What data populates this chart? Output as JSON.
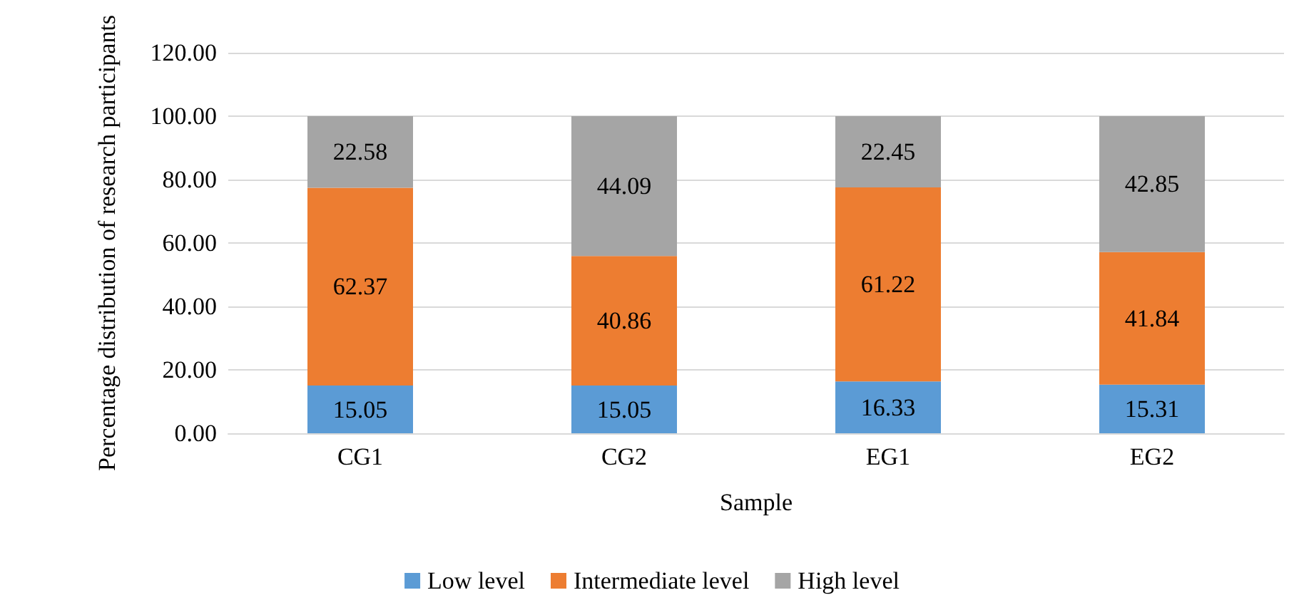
{
  "chart_data": {
    "type": "bar",
    "stacked": true,
    "data_labels": true,
    "xlabel": "Sample",
    "ylabel": "Percentage distribution of research participants",
    "categories": [
      "CG1",
      "CG2",
      "EG1",
      "EG2"
    ],
    "series": [
      {
        "name": "Low level",
        "color": "#5b9bd5",
        "values": [
          15.05,
          15.05,
          16.33,
          15.31
        ]
      },
      {
        "name": "Intermediate level",
        "color": "#ed7d31",
        "values": [
          62.37,
          40.86,
          61.22,
          41.84
        ]
      },
      {
        "name": "High level",
        "color": "#a5a5a5",
        "values": [
          22.58,
          44.09,
          22.45,
          42.85
        ]
      }
    ],
    "ylim": [
      0,
      120
    ],
    "yticks": [
      {
        "value": 0,
        "label": "0.00"
      },
      {
        "value": 20,
        "label": "20.00"
      },
      {
        "value": 40,
        "label": "40.00"
      },
      {
        "value": 60,
        "label": "60.00"
      },
      {
        "value": 80,
        "label": "80.00"
      },
      {
        "value": 100,
        "label": "100.00"
      },
      {
        "value": 120,
        "label": "120.00"
      }
    ],
    "grid": "y",
    "legend": "bottom"
  }
}
